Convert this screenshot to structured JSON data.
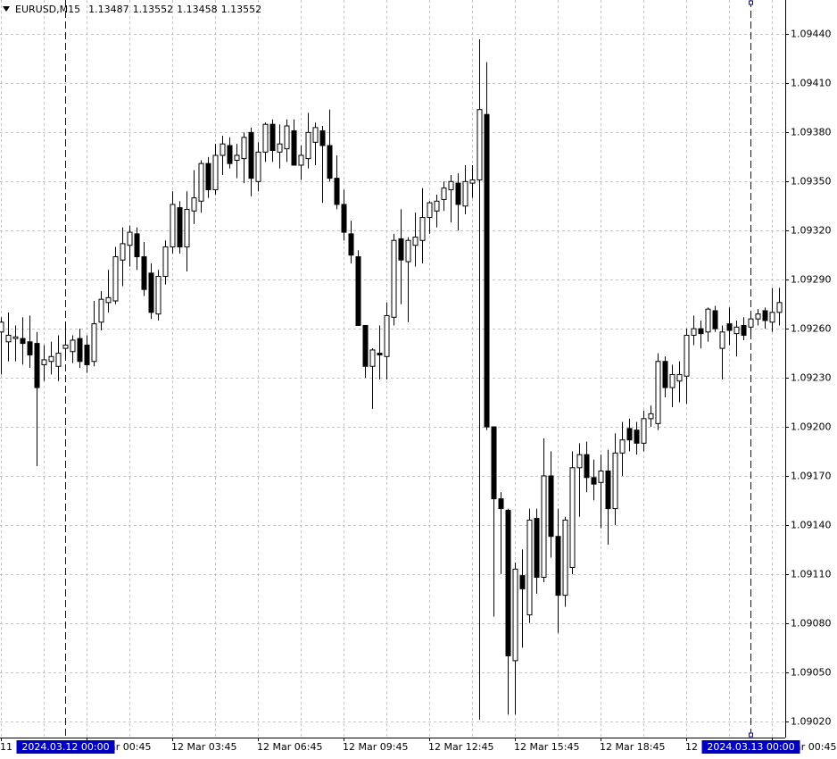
{
  "chart_data": {
    "type": "candlestick",
    "title": "EURUSD,M15",
    "header_values": [
      1.13487,
      1.13552,
      1.13458,
      1.13552
    ],
    "x": [
      "11 Mar 21:45",
      "11 Mar 22:00",
      "11 Mar 22:15",
      "11 Mar 22:30",
      "11 Mar 22:45",
      "11 Mar 23:00",
      "11 Mar 23:15",
      "11 Mar 23:30",
      "11 Mar 23:45",
      "12 Mar 00:00",
      "12 Mar 00:15",
      "12 Mar 00:30",
      "12 Mar 00:45",
      "12 Mar 01:00",
      "12 Mar 01:15",
      "12 Mar 01:30",
      "12 Mar 01:45",
      "12 Mar 02:00",
      "12 Mar 02:15",
      "12 Mar 02:30",
      "12 Mar 02:45",
      "12 Mar 03:00",
      "12 Mar 03:15",
      "12 Mar 03:30",
      "12 Mar 03:45",
      "12 Mar 04:00",
      "12 Mar 04:15",
      "12 Mar 04:30",
      "12 Mar 04:45",
      "12 Mar 05:00",
      "12 Mar 05:15",
      "12 Mar 05:30",
      "12 Mar 05:45",
      "12 Mar 06:00",
      "12 Mar 06:15",
      "12 Mar 06:30",
      "12 Mar 06:45",
      "12 Mar 07:00",
      "12 Mar 07:15",
      "12 Mar 07:30",
      "12 Mar 07:45",
      "12 Mar 08:00",
      "12 Mar 08:15",
      "12 Mar 08:30",
      "12 Mar 08:45",
      "12 Mar 09:00",
      "12 Mar 09:15",
      "12 Mar 09:30",
      "12 Mar 09:45",
      "12 Mar 10:00",
      "12 Mar 10:15",
      "12 Mar 10:30",
      "12 Mar 10:45",
      "12 Mar 11:00",
      "12 Mar 11:15",
      "12 Mar 11:30",
      "12 Mar 11:45",
      "12 Mar 12:00",
      "12 Mar 12:15",
      "12 Mar 12:30",
      "12 Mar 12:45",
      "12 Mar 13:00",
      "12 Mar 13:15",
      "12 Mar 13:30",
      "12 Mar 13:45",
      "12 Mar 14:00",
      "12 Mar 14:15",
      "12 Mar 14:30",
      "12 Mar 14:45",
      "12 Mar 15:00",
      "12 Mar 15:15",
      "12 Mar 15:30",
      "12 Mar 15:45",
      "12 Mar 16:00",
      "12 Mar 16:15",
      "12 Mar 16:30",
      "12 Mar 16:45",
      "12 Mar 17:00",
      "12 Mar 17:15",
      "12 Mar 17:30",
      "12 Mar 17:45",
      "12 Mar 18:00",
      "12 Mar 18:15",
      "12 Mar 18:30",
      "12 Mar 18:45",
      "12 Mar 19:00",
      "12 Mar 19:15",
      "12 Mar 19:30",
      "12 Mar 19:45",
      "12 Mar 20:00",
      "12 Mar 20:15",
      "12 Mar 20:30",
      "12 Mar 20:45",
      "12 Mar 21:00",
      "12 Mar 21:15",
      "12 Mar 21:30",
      "12 Mar 21:45",
      "12 Mar 22:00",
      "12 Mar 22:15",
      "12 Mar 22:30",
      "12 Mar 22:45",
      "12 Mar 23:00",
      "12 Mar 23:15",
      "12 Mar 23:30",
      "12 Mar 23:45",
      "13 Mar 00:00",
      "13 Mar 00:15",
      "13 Mar 00:30",
      "13 Mar 00:45",
      "13 Mar 01:00"
    ],
    "open": [
      1.09258,
      1.09252,
      1.09254,
      1.09254,
      1.09252,
      1.09251,
      1.09238,
      1.0924,
      1.09237,
      1.09248,
      1.09246,
      1.09254,
      1.0925,
      1.0924,
      1.09264,
      1.09276,
      1.09277,
      1.09302,
      1.09311,
      1.09318,
      1.09304,
      1.09294,
      1.09269,
      1.09292,
      1.0931,
      1.09334,
      1.0931,
      1.09332,
      1.09338,
      1.09361,
      1.09345,
      1.09366,
      1.09372,
      1.09363,
      1.09364,
      1.0938,
      1.0935,
      1.09368,
      1.09385,
      1.09368,
      1.0937,
      1.09381,
      1.0936,
      1.09364,
      1.09374,
      1.09381,
      1.09372,
      1.09352,
      1.09336,
      1.09318,
      1.09304,
      1.09262,
      1.09237,
      1.09245,
      1.09243,
      1.09267,
      1.09315,
      1.09301,
      1.09311,
      1.09314,
      1.09328,
      1.09332,
      1.09339,
      1.09345,
      1.09349,
      1.09335,
      1.09349,
      1.09351,
      1.09391,
      1.092,
      1.09156,
      1.09149,
      1.09057,
      1.09109,
      1.09085,
      1.09144,
      1.09108,
      1.0917,
      1.09133,
      1.09097,
      1.09114,
      1.09175,
      1.09183,
      1.09169,
      1.09166,
      1.09173,
      1.0915,
      1.09184,
      1.09199,
      1.09198,
      1.0919,
      1.09205,
      1.09202,
      1.0924,
      1.09224,
      1.09228,
      1.09231,
      1.09256,
      1.0926,
      1.09258,
      1.09271,
      1.09248,
      1.09263,
      1.09257,
      1.09262,
      1.09261,
      1.09266,
      1.09271,
      1.09264,
      1.0927
    ],
    "high": [
      1.09267,
      1.0927,
      1.09262,
      1.09267,
      1.09268,
      1.09258,
      1.0925,
      1.09252,
      1.09256,
      1.09264,
      1.09256,
      1.0926,
      1.09256,
      1.09277,
      1.09283,
      1.09296,
      1.0931,
      1.09322,
      1.09323,
      1.09322,
      1.09313,
      1.093,
      1.09296,
      1.09314,
      1.09344,
      1.09338,
      1.09344,
      1.09357,
      1.09363,
      1.09365,
      1.09373,
      1.09378,
      1.09377,
      1.09373,
      1.0938,
      1.09383,
      1.09374,
      1.09386,
      1.09388,
      1.09385,
      1.09388,
      1.09388,
      1.09372,
      1.09392,
      1.09386,
      1.09384,
      1.09394,
      1.09366,
      1.09345,
      1.09326,
      1.09308,
      1.09262,
      1.09248,
      1.09262,
      1.09276,
      1.09318,
      1.09333,
      1.09316,
      1.09331,
      1.09346,
      1.09338,
      1.09342,
      1.0935,
      1.09354,
      1.09355,
      1.0936,
      1.0936,
      1.09437,
      1.09423,
      1.092,
      1.0916,
      1.0915,
      1.09117,
      1.09125,
      1.0915,
      1.0915,
      1.09193,
      1.09185,
      1.0915,
      1.09145,
      1.09185,
      1.0919,
      1.09191,
      1.0918,
      1.09183,
      1.09186,
      1.09196,
      1.09203,
      1.09205,
      1.09203,
      1.0921,
      1.09213,
      1.09245,
      1.09243,
      1.09238,
      1.0924,
      1.0926,
      1.09268,
      1.09265,
      1.09273,
      1.09274,
      1.09262,
      1.09273,
      1.09265,
      1.09267,
      1.0927,
      1.09272,
      1.09273,
      1.09285,
      1.09285
    ],
    "low": [
      1.09232,
      1.0924,
      1.0924,
      1.09238,
      1.09236,
      1.09176,
      1.09228,
      1.09232,
      1.09228,
      1.09242,
      1.09239,
      1.09236,
      1.09233,
      1.09237,
      1.09259,
      1.0927,
      1.09275,
      1.09286,
      1.09298,
      1.09296,
      1.0928,
      1.09266,
      1.09265,
      1.09287,
      1.09306,
      1.09306,
      1.09295,
      1.09324,
      1.09331,
      1.0934,
      1.09342,
      1.09354,
      1.09358,
      1.09352,
      1.09349,
      1.09341,
      1.09344,
      1.09362,
      1.09362,
      1.09358,
      1.09362,
      1.0936,
      1.09351,
      1.09358,
      1.0936,
      1.09337,
      1.0935,
      1.09333,
      1.09314,
      1.093,
      1.09262,
      1.0923,
      1.09211,
      1.09229,
      1.09229,
      1.09262,
      1.09275,
      1.09264,
      1.09298,
      1.093,
      1.09318,
      1.09322,
      1.09332,
      1.09325,
      1.0932,
      1.0933,
      1.0934,
      1.09021,
      1.09198,
      1.09084,
      1.0911,
      1.09024,
      1.09024,
      1.09065,
      1.0908,
      1.09098,
      1.09105,
      1.0912,
      1.09074,
      1.0909,
      1.0911,
      1.09145,
      1.0916,
      1.09155,
      1.09138,
      1.09128,
      1.0914,
      1.0917,
      1.09185,
      1.09183,
      1.09185,
      1.092,
      1.09198,
      1.09218,
      1.09212,
      1.09215,
      1.09214,
      1.0925,
      1.09248,
      1.09252,
      1.09258,
      1.09229,
      1.0925,
      1.09243,
      1.09253,
      1.09256,
      1.09262,
      1.0926,
      1.09258,
      1.09262
    ],
    "close": [
      1.09264,
      1.09256,
      1.09255,
      1.09251,
      1.09244,
      1.09224,
      1.09241,
      1.09243,
      1.09245,
      1.0925,
      1.09253,
      1.0924,
      1.09238,
      1.09263,
      1.09278,
      1.09279,
      1.09304,
      1.09312,
      1.09319,
      1.09304,
      1.09284,
      1.0927,
      1.09292,
      1.0931,
      1.09336,
      1.0931,
      1.09333,
      1.0934,
      1.09361,
      1.09345,
      1.09366,
      1.09373,
      1.09361,
      1.09366,
      1.09377,
      1.09352,
      1.09368,
      1.09385,
      1.09369,
      1.09373,
      1.09384,
      1.0936,
      1.09366,
      1.0938,
      1.09383,
      1.09372,
      1.09352,
      1.09336,
      1.09319,
      1.09305,
      1.09262,
      1.09237,
      1.09247,
      1.09244,
      1.09268,
      1.09314,
      1.09302,
      1.09314,
      1.09316,
      1.09328,
      1.09337,
      1.09338,
      1.09346,
      1.0935,
      1.09336,
      1.0935,
      1.09351,
      1.09394,
      1.092,
      1.09156,
      1.0915,
      1.0906,
      1.09113,
      1.09101,
      1.09143,
      1.09108,
      1.0917,
      1.09133,
      1.09097,
      1.09143,
      1.09175,
      1.09183,
      1.09169,
      1.09165,
      1.09173,
      1.0915,
      1.09184,
      1.09192,
      1.09192,
      1.0919,
      1.09205,
      1.09208,
      1.0924,
      1.09224,
      1.09232,
      1.09232,
      1.09256,
      1.0926,
      1.09257,
      1.09272,
      1.0926,
      1.09258,
      1.09259,
      1.09261,
      1.09256,
      1.09266,
      1.09269,
      1.09265,
      1.0927,
      1.09276
    ],
    "up_color": "#ffffff",
    "down_color": "#000000",
    "ylim": [
      1.0901,
      1.09461
    ],
    "yticks": [
      {
        "value": 1.0944,
        "label": "1.09440"
      },
      {
        "value": 1.0941,
        "label": "1.09410"
      },
      {
        "value": 1.0938,
        "label": "1.09380"
      },
      {
        "value": 1.0935,
        "label": "1.09350"
      },
      {
        "value": 1.0932,
        "label": "1.09320"
      },
      {
        "value": 1.0929,
        "label": "1.09290"
      },
      {
        "value": 1.0926,
        "label": "1.09260"
      },
      {
        "value": 1.0923,
        "label": "1.09230"
      },
      {
        "value": 1.092,
        "label": "1.09200"
      },
      {
        "value": 1.0917,
        "label": "1.09170"
      },
      {
        "value": 1.0914,
        "label": "1.09140"
      },
      {
        "value": 1.0911,
        "label": "1.09110"
      },
      {
        "value": 1.0908,
        "label": "1.09080"
      },
      {
        "value": 1.0905,
        "label": "1.09050"
      },
      {
        "value": 1.0902,
        "label": "1.09020"
      }
    ],
    "xticks": [
      "11 Mar 21:45",
      "12 Mar 00:45",
      "12 Mar 03:45",
      "12 Mar 06:45",
      "12 Mar 09:45",
      "12 Mar 12:45",
      "12 Mar 15:45",
      "12 Mar 18:45",
      "12 Mar 21:45",
      "13 Mar 00:45"
    ],
    "separators": [
      {
        "x": "12 Mar 00:00",
        "label": "2024.03.12 00:00"
      },
      {
        "x": "13 Mar 00:00",
        "label": "2024.03.13 00:00"
      }
    ],
    "separator_color": "#0000c0",
    "grid": true
  }
}
